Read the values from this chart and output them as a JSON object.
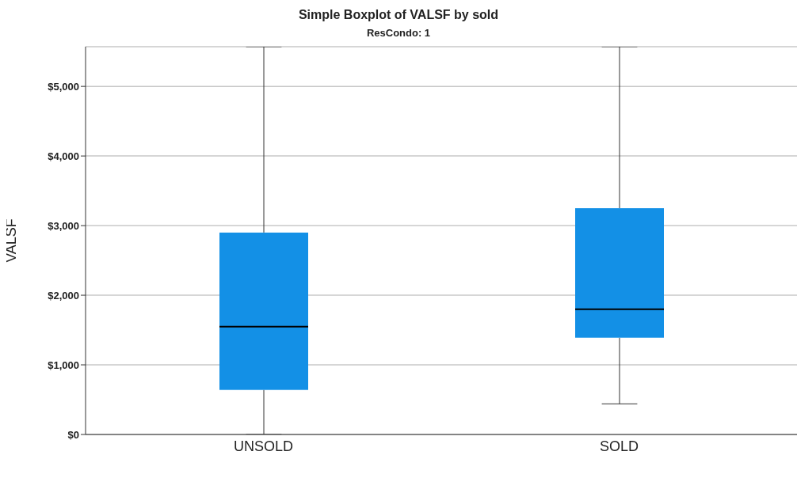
{
  "chart_data": {
    "type": "box",
    "title": "Simple Boxplot of VALSF by sold",
    "subtitle": "ResCondo: 1",
    "ylabel": "VALSF",
    "categories": [
      "UNSOLD",
      "SOLD"
    ],
    "series": [
      {
        "color": "#1390e6",
        "boxes": [
          {
            "low": 0,
            "q1": 640,
            "median": 1550,
            "q3": 2900,
            "high": 5570
          },
          {
            "low": 440,
            "q1": 1390,
            "median": 1800,
            "q3": 3250,
            "high": 5570
          }
        ]
      }
    ],
    "ylim": [
      0,
      5570
    ],
    "yticks": [
      {
        "value": 0,
        "label": "$0"
      },
      {
        "value": 1000,
        "label": "$1,000"
      },
      {
        "value": 2000,
        "label": "$2,000"
      },
      {
        "value": 3000,
        "label": "$3,000"
      },
      {
        "value": 4000,
        "label": "$4,000"
      },
      {
        "value": 5000,
        "label": "$5,000"
      }
    ],
    "grid": "y"
  }
}
